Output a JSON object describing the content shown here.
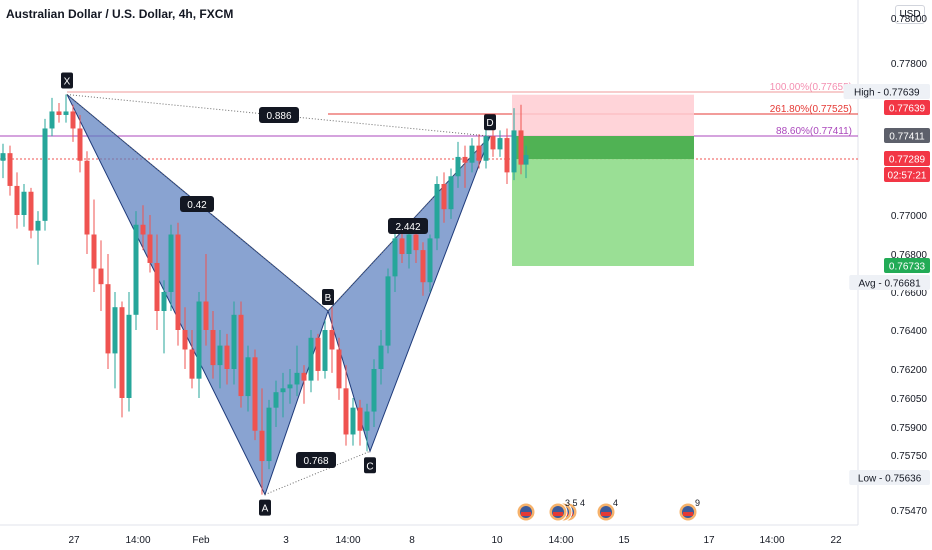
{
  "header": {
    "title": "Australian Dollar / U.S. Dollar, 4h, FXCM",
    "currency_button": "USD"
  },
  "chart_data": {
    "type": "candlestick",
    "symbol": "Australian Dollar / U.S. Dollar",
    "interval": "4h",
    "source": "FXCM",
    "y_ticks": [
      "0.78000",
      "0.77800",
      "0.77000",
      "0.76800",
      "0.76600",
      "0.76400",
      "0.76200",
      "0.76050",
      "0.75900",
      "0.75750",
      "0.75470"
    ],
    "x_ticks": [
      "27",
      "14:00",
      "Feb",
      "3",
      "14:00",
      "8",
      "10",
      "14:00",
      "15",
      "17",
      "14:00",
      "22"
    ],
    "pattern": {
      "name": "harmonic XABCD",
      "points": [
        {
          "label": "X",
          "date": "27 Jan 08:00",
          "price": 0.7764
        },
        {
          "label": "A",
          "date": "2 Feb 08:00",
          "price": 0.7555
        },
        {
          "label": "B",
          "date": "4 Feb 00:00",
          "price": 0.765
        },
        {
          "label": "C",
          "date": "5 Feb 04:00",
          "price": 0.7577
        },
        {
          "label": "D",
          "date": "9 Feb 20:00",
          "price": 0.7741
        }
      ],
      "ratios": [
        {
          "legs": "XA-AB",
          "value": "0.42"
        },
        {
          "legs": "XD",
          "value": "0.886"
        },
        {
          "legs": "AB-BC",
          "value": "0.768"
        },
        {
          "legs": "BC-CD",
          "value": "2.442"
        }
      ]
    },
    "levels": [
      {
        "label": "100.00%(0.77655)",
        "price": 0.77655
      },
      {
        "label": "261.80%(0.77525)",
        "price": 0.77525
      },
      {
        "label": "88.60%(0.77411)",
        "price": 0.77411
      }
    ],
    "position": {
      "stop_price": 0.77639,
      "entry_price": 0.77411,
      "target_price": 0.76733,
      "stop_color": "#ffcdd2",
      "target_color": "#8fdc8a"
    },
    "price_badges": [
      {
        "text": "High - 0.77639",
        "style": "plain"
      },
      {
        "text": "0.77639",
        "style": "red"
      },
      {
        "text": "0.77411",
        "style": "dark"
      },
      {
        "text": "0.77289",
        "style": "red"
      },
      {
        "text": "02:57:21",
        "style": "red"
      },
      {
        "text": "0.76733",
        "style": "green"
      },
      {
        "text": "Avg - 0.76681",
        "style": "plain"
      },
      {
        "text": "Low - 0.75636",
        "style": "plain"
      }
    ],
    "events": [
      {
        "count": ""
      },
      {
        "count": "3 5 4"
      },
      {
        "count": "4"
      },
      {
        "count": "9"
      }
    ],
    "colors": {
      "up": "#26a69a",
      "down": "#ef5350",
      "pattern_fill": "#5b7fbf",
      "pattern_edge": "#1e3a7a"
    }
  }
}
